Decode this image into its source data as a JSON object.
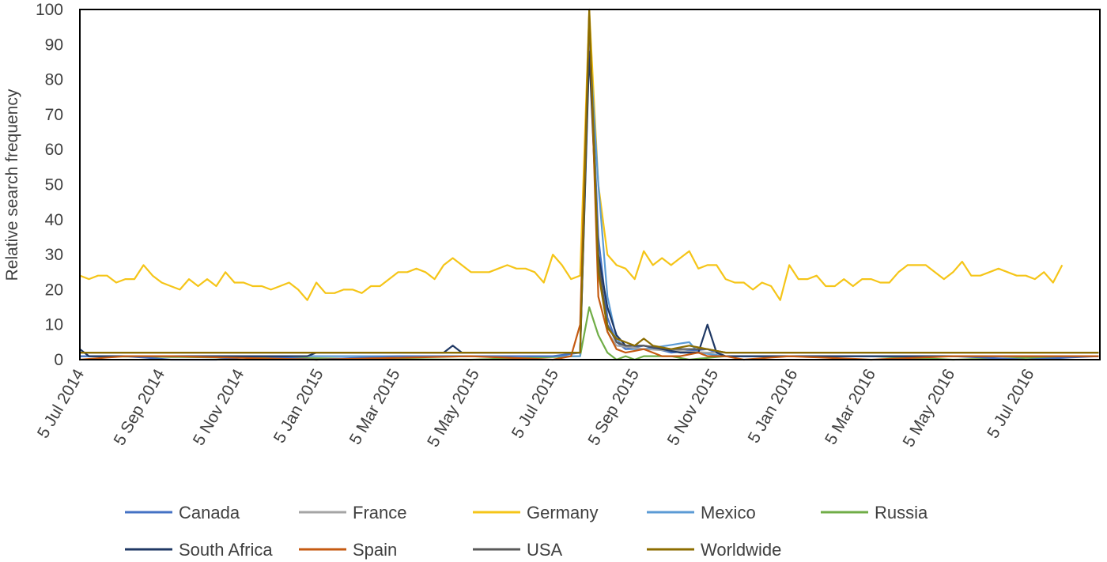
{
  "chart_data": {
    "type": "line",
    "ylabel": "Relative search frequency",
    "xlabel": "",
    "ylim": [
      0,
      100
    ],
    "yticks": [
      0,
      10,
      20,
      30,
      40,
      50,
      60,
      70,
      80,
      90,
      100
    ],
    "x_start": "2014-07-05",
    "x_end": "2016-08-28",
    "xtick_labels": [
      "5 Jul 2014",
      "5 Sep 2014",
      "5 Nov 2014",
      "5 Jan 2015",
      "5 Mar 2015",
      "5 May 2015",
      "5 Jul 2015",
      "5 Sep 2015",
      "5 Nov 2015",
      "5 Jan 2016",
      "5 Mar 2016",
      "5 May 2016",
      "5 Jul 2016"
    ],
    "legend_position": "bottom",
    "grid": false,
    "series": [
      {
        "name": "Canada",
        "color": "#4472C4",
        "anchors": [
          [
            "2014-07-05",
            1
          ],
          [
            "2014-08-09",
            1
          ],
          [
            "2014-09-13",
            0
          ],
          [
            "2014-10-18",
            0
          ],
          [
            "2014-11-22",
            1
          ],
          [
            "2015-01-03",
            0
          ],
          [
            "2015-03-07",
            1
          ],
          [
            "2015-05-02",
            1
          ],
          [
            "2015-07-04",
            1
          ],
          [
            "2015-07-25",
            2
          ],
          [
            "2015-08-01",
            95
          ],
          [
            "2015-08-08",
            35
          ],
          [
            "2015-08-15",
            12
          ],
          [
            "2015-08-22",
            5
          ],
          [
            "2015-08-29",
            3
          ],
          [
            "2015-09-12",
            4
          ],
          [
            "2015-10-03",
            2
          ],
          [
            "2015-10-31",
            3
          ],
          [
            "2015-11-14",
            1
          ],
          [
            "2016-01-02",
            1
          ],
          [
            "2016-03-05",
            1
          ],
          [
            "2016-05-07",
            1
          ],
          [
            "2016-07-02",
            0
          ],
          [
            "2016-08-27",
            1
          ]
        ]
      },
      {
        "name": "France",
        "color": "#A5A5A5",
        "anchors": [
          [
            "2014-07-05",
            2
          ],
          [
            "2015-07-25",
            2
          ],
          [
            "2015-08-01",
            90
          ],
          [
            "2015-08-08",
            30
          ],
          [
            "2015-08-15",
            8
          ],
          [
            "2015-08-22",
            4
          ],
          [
            "2015-09-12",
            3
          ],
          [
            "2015-10-31",
            2
          ],
          [
            "2016-08-27",
            2
          ]
        ]
      },
      {
        "name": "Germany",
        "color": "#F5C518",
        "anchors": [
          [
            "2014-07-05",
            24
          ],
          [
            "2014-07-12",
            23
          ],
          [
            "2014-07-19",
            24
          ],
          [
            "2014-07-26",
            24
          ],
          [
            "2014-08-02",
            22
          ],
          [
            "2014-08-09",
            23
          ],
          [
            "2014-08-16",
            23
          ],
          [
            "2014-08-23",
            27
          ],
          [
            "2014-08-30",
            24
          ],
          [
            "2014-09-06",
            22
          ],
          [
            "2014-09-13",
            21
          ],
          [
            "2014-09-20",
            20
          ],
          [
            "2014-09-27",
            23
          ],
          [
            "2014-10-04",
            21
          ],
          [
            "2014-10-11",
            23
          ],
          [
            "2014-10-18",
            21
          ],
          [
            "2014-10-25",
            25
          ],
          [
            "2014-11-01",
            22
          ],
          [
            "2014-11-08",
            22
          ],
          [
            "2014-11-15",
            21
          ],
          [
            "2014-11-22",
            21
          ],
          [
            "2014-11-29",
            20
          ],
          [
            "2014-12-06",
            21
          ],
          [
            "2014-12-13",
            22
          ],
          [
            "2014-12-20",
            20
          ],
          [
            "2014-12-27",
            17
          ],
          [
            "2015-01-03",
            22
          ],
          [
            "2015-01-10",
            19
          ],
          [
            "2015-01-17",
            19
          ],
          [
            "2015-01-24",
            20
          ],
          [
            "2015-01-31",
            20
          ],
          [
            "2015-02-07",
            19
          ],
          [
            "2015-02-14",
            21
          ],
          [
            "2015-02-21",
            21
          ],
          [
            "2015-02-28",
            23
          ],
          [
            "2015-03-07",
            25
          ],
          [
            "2015-03-14",
            25
          ],
          [
            "2015-03-21",
            26
          ],
          [
            "2015-03-28",
            25
          ],
          [
            "2015-04-04",
            23
          ],
          [
            "2015-04-11",
            27
          ],
          [
            "2015-04-18",
            29
          ],
          [
            "2015-04-25",
            27
          ],
          [
            "2015-05-02",
            25
          ],
          [
            "2015-05-09",
            25
          ],
          [
            "2015-05-16",
            25
          ],
          [
            "2015-05-23",
            26
          ],
          [
            "2015-05-30",
            27
          ],
          [
            "2015-06-06",
            26
          ],
          [
            "2015-06-13",
            26
          ],
          [
            "2015-06-20",
            25
          ],
          [
            "2015-06-27",
            22
          ],
          [
            "2015-07-04",
            30
          ],
          [
            "2015-07-11",
            27
          ],
          [
            "2015-07-18",
            23
          ],
          [
            "2015-07-25",
            24
          ],
          [
            "2015-08-01",
            100
          ],
          [
            "2015-08-08",
            50
          ],
          [
            "2015-08-15",
            30
          ],
          [
            "2015-08-22",
            27
          ],
          [
            "2015-08-29",
            26
          ],
          [
            "2015-09-05",
            23
          ],
          [
            "2015-09-12",
            31
          ],
          [
            "2015-09-19",
            27
          ],
          [
            "2015-09-26",
            29
          ],
          [
            "2015-10-03",
            27
          ],
          [
            "2015-10-10",
            29
          ],
          [
            "2015-10-17",
            31
          ],
          [
            "2015-10-24",
            26
          ],
          [
            "2015-10-31",
            27
          ],
          [
            "2015-11-07",
            27
          ],
          [
            "2015-11-14",
            23
          ],
          [
            "2015-11-21",
            22
          ],
          [
            "2015-11-28",
            22
          ],
          [
            "2015-12-05",
            20
          ],
          [
            "2015-12-12",
            22
          ],
          [
            "2015-12-19",
            21
          ],
          [
            "2015-12-26",
            17
          ],
          [
            "2016-01-02",
            27
          ],
          [
            "2016-01-09",
            23
          ],
          [
            "2016-01-16",
            23
          ],
          [
            "2016-01-23",
            24
          ],
          [
            "2016-01-30",
            21
          ],
          [
            "2016-02-06",
            21
          ],
          [
            "2016-02-13",
            23
          ],
          [
            "2016-02-20",
            21
          ],
          [
            "2016-02-27",
            23
          ],
          [
            "2016-03-05",
            23
          ],
          [
            "2016-03-12",
            22
          ],
          [
            "2016-03-19",
            22
          ],
          [
            "2016-03-26",
            25
          ],
          [
            "2016-04-02",
            27
          ],
          [
            "2016-04-09",
            27
          ],
          [
            "2016-04-16",
            27
          ],
          [
            "2016-04-23",
            25
          ],
          [
            "2016-04-30",
            23
          ],
          [
            "2016-05-07",
            25
          ],
          [
            "2016-05-14",
            28
          ],
          [
            "2016-05-21",
            24
          ],
          [
            "2016-05-28",
            24
          ],
          [
            "2016-06-04",
            25
          ],
          [
            "2016-06-11",
            26
          ],
          [
            "2016-06-18",
            25
          ],
          [
            "2016-06-25",
            24
          ],
          [
            "2016-07-02",
            24
          ],
          [
            "2016-07-09",
            23
          ],
          [
            "2016-07-16",
            25
          ],
          [
            "2016-07-23",
            22
          ],
          [
            "2016-07-30",
            27
          ]
        ]
      },
      {
        "name": "Mexico",
        "color": "#5B9BD5",
        "anchors": [
          [
            "2014-07-05",
            1
          ],
          [
            "2015-07-25",
            1
          ],
          [
            "2015-08-01",
            92
          ],
          [
            "2015-08-08",
            50
          ],
          [
            "2015-08-15",
            18
          ],
          [
            "2015-08-22",
            6
          ],
          [
            "2015-08-29",
            3
          ],
          [
            "2015-09-12",
            3
          ],
          [
            "2015-10-17",
            5
          ],
          [
            "2015-10-24",
            2
          ],
          [
            "2015-11-14",
            1
          ],
          [
            "2016-08-27",
            1
          ]
        ]
      },
      {
        "name": "Russia",
        "color": "#70AD47",
        "anchors": [
          [
            "2014-07-05",
            1
          ],
          [
            "2015-05-02",
            0
          ],
          [
            "2015-07-25",
            1
          ],
          [
            "2015-08-01",
            15
          ],
          [
            "2015-08-08",
            7
          ],
          [
            "2015-08-15",
            2
          ],
          [
            "2015-08-22",
            0
          ],
          [
            "2015-08-29",
            1
          ],
          [
            "2015-09-05",
            0
          ],
          [
            "2015-09-12",
            1
          ],
          [
            "2015-10-03",
            1
          ],
          [
            "2015-10-17",
            0
          ],
          [
            "2015-11-14",
            1
          ],
          [
            "2016-03-05",
            1
          ],
          [
            "2016-05-07",
            0
          ],
          [
            "2016-08-27",
            1
          ]
        ]
      },
      {
        "name": "South Africa",
        "color": "#1F3864",
        "anchors": [
          [
            "2014-07-05",
            3
          ],
          [
            "2014-07-12",
            1
          ],
          [
            "2014-12-27",
            1
          ],
          [
            "2015-01-03",
            2
          ],
          [
            "2015-04-11",
            2
          ],
          [
            "2015-04-18",
            4
          ],
          [
            "2015-04-25",
            2
          ],
          [
            "2015-07-25",
            2
          ],
          [
            "2015-08-01",
            88
          ],
          [
            "2015-08-08",
            30
          ],
          [
            "2015-08-15",
            15
          ],
          [
            "2015-08-22",
            7
          ],
          [
            "2015-08-29",
            4
          ],
          [
            "2015-09-12",
            4
          ],
          [
            "2015-10-10",
            2
          ],
          [
            "2015-10-24",
            2
          ],
          [
            "2015-10-31",
            10
          ],
          [
            "2015-11-07",
            2
          ],
          [
            "2015-11-14",
            1
          ],
          [
            "2016-08-27",
            1
          ]
        ]
      },
      {
        "name": "Spain",
        "color": "#C55A11",
        "anchors": [
          [
            "2014-07-05",
            0
          ],
          [
            "2014-08-09",
            1
          ],
          [
            "2014-09-13",
            1
          ],
          [
            "2015-01-03",
            0
          ],
          [
            "2015-05-02",
            1
          ],
          [
            "2015-07-04",
            0
          ],
          [
            "2015-07-18",
            1
          ],
          [
            "2015-07-25",
            10
          ],
          [
            "2015-08-01",
            99
          ],
          [
            "2015-08-08",
            18
          ],
          [
            "2015-08-15",
            8
          ],
          [
            "2015-08-22",
            3
          ],
          [
            "2015-08-29",
            2
          ],
          [
            "2015-09-12",
            3
          ],
          [
            "2015-09-26",
            1
          ],
          [
            "2015-10-10",
            1
          ],
          [
            "2015-10-24",
            2
          ],
          [
            "2015-10-31",
            1
          ],
          [
            "2015-11-14",
            1
          ],
          [
            "2015-11-28",
            0
          ],
          [
            "2016-01-02",
            1
          ],
          [
            "2016-03-05",
            0
          ],
          [
            "2016-05-07",
            1
          ],
          [
            "2016-07-02",
            1
          ],
          [
            "2016-08-27",
            1
          ]
        ]
      },
      {
        "name": "USA",
        "color": "#595959",
        "anchors": [
          [
            "2014-07-05",
            2
          ],
          [
            "2015-07-25",
            2
          ],
          [
            "2015-08-01",
            98
          ],
          [
            "2015-08-08",
            28
          ],
          [
            "2015-08-15",
            10
          ],
          [
            "2015-08-22",
            5
          ],
          [
            "2015-08-29",
            4
          ],
          [
            "2015-09-12",
            4
          ],
          [
            "2015-10-03",
            3
          ],
          [
            "2015-10-31",
            3
          ],
          [
            "2015-11-14",
            2
          ],
          [
            "2016-08-27",
            2
          ]
        ]
      },
      {
        "name": "Worldwide",
        "color": "#8C6D00",
        "anchors": [
          [
            "2014-07-05",
            2
          ],
          [
            "2015-07-25",
            2
          ],
          [
            "2015-08-01",
            100
          ],
          [
            "2015-08-08",
            25
          ],
          [
            "2015-08-15",
            9
          ],
          [
            "2015-08-22",
            6
          ],
          [
            "2015-08-29",
            5
          ],
          [
            "2015-09-05",
            4
          ],
          [
            "2015-09-12",
            6
          ],
          [
            "2015-09-19",
            4
          ],
          [
            "2015-10-03",
            3
          ],
          [
            "2015-10-17",
            4
          ],
          [
            "2015-10-31",
            3
          ],
          [
            "2015-11-14",
            2
          ],
          [
            "2016-08-27",
            2
          ]
        ]
      }
    ]
  }
}
